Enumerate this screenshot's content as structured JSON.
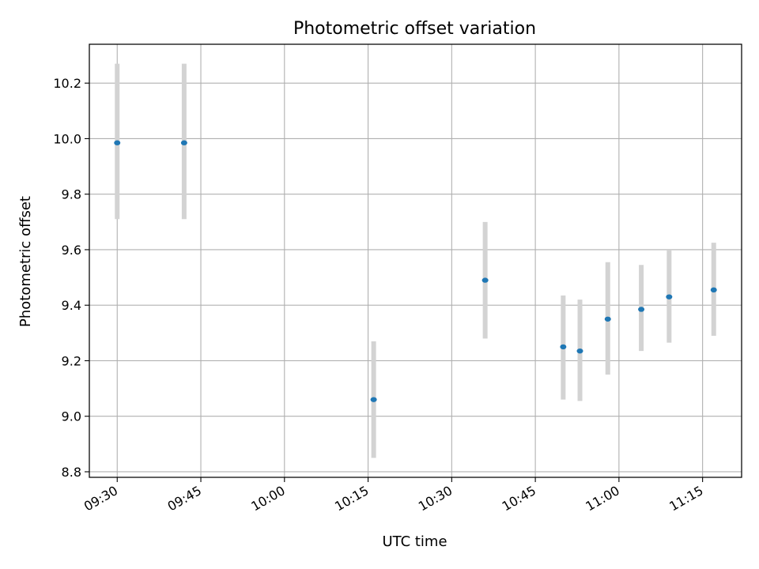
{
  "chart_data": {
    "type": "scatter",
    "title": "Photometric offset variation",
    "xlabel": "UTC time",
    "ylabel": "Photometric offset",
    "x_ticks": [
      "09:30",
      "09:45",
      "10:00",
      "10:15",
      "10:30",
      "10:45",
      "11:00",
      "11:15"
    ],
    "y_ticks": [
      "8.8",
      "9.0",
      "9.2",
      "9.4",
      "9.6",
      "9.8",
      "10.0",
      "10.2"
    ],
    "xlim": [
      "09:25",
      "11:22"
    ],
    "ylim": [
      8.78,
      10.34
    ],
    "grid": true,
    "legend": "none",
    "points": [
      {
        "x": "09:30",
        "y": 9.985,
        "err_low": 9.71,
        "err_high": 10.27
      },
      {
        "x": "09:42",
        "y": 9.985,
        "err_low": 9.71,
        "err_high": 10.27
      },
      {
        "x": "10:16",
        "y": 9.06,
        "err_low": 8.85,
        "err_high": 9.27
      },
      {
        "x": "10:36",
        "y": 9.49,
        "err_low": 9.28,
        "err_high": 9.7
      },
      {
        "x": "10:50",
        "y": 9.25,
        "err_low": 9.06,
        "err_high": 9.435
      },
      {
        "x": "10:53",
        "y": 9.235,
        "err_low": 9.055,
        "err_high": 9.42
      },
      {
        "x": "10:58",
        "y": 9.35,
        "err_low": 9.15,
        "err_high": 9.555
      },
      {
        "x": "11:04",
        "y": 9.385,
        "err_low": 9.235,
        "err_high": 9.545
      },
      {
        "x": "11:09",
        "y": 9.43,
        "err_low": 9.265,
        "err_high": 9.6
      },
      {
        "x": "11:17",
        "y": 9.455,
        "err_low": 9.29,
        "err_high": 9.625
      }
    ],
    "colors": {
      "marker": "#1f77b4",
      "error_bar": "#d3d3d3",
      "grid": "#b0b0b0"
    }
  }
}
